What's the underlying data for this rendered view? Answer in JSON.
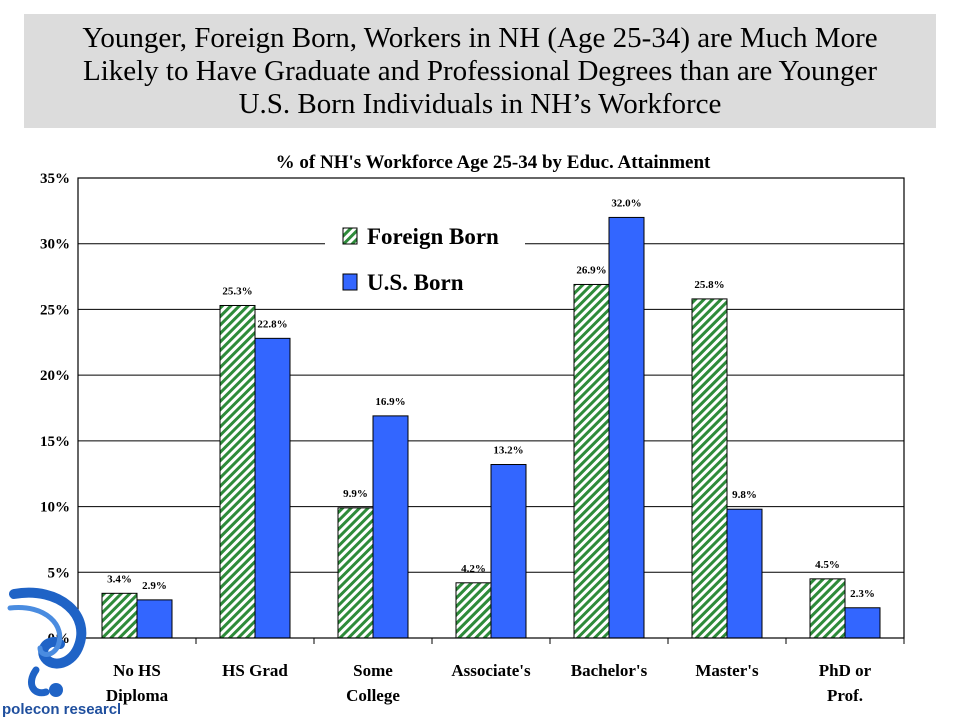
{
  "slide": {
    "title_lines": [
      "Younger, Foreign Born, Workers in NH (Age 25-34) are Much More",
      "Likely to Have Graduate and Professional Degrees than are Younger",
      "U.S. Born Individuals in NH’s Workforce"
    ],
    "logo_text": "polecon research",
    "logo_icon": "polecon-swirl-icon"
  },
  "chart_data": {
    "type": "bar",
    "title": "% of NH's Workforce Age 25-34 by Educ. Attainment",
    "categories": [
      [
        "No HS",
        "Diploma"
      ],
      [
        "HS Grad"
      ],
      [
        "Some",
        "College"
      ],
      [
        "Associate's"
      ],
      [
        "Bachelor's"
      ],
      [
        "Master's"
      ],
      [
        "PhD or",
        "Prof."
      ]
    ],
    "series": [
      {
        "name": "Foreign Born",
        "values": [
          3.4,
          25.3,
          9.9,
          4.2,
          26.9,
          25.8,
          4.5
        ],
        "labels": [
          "3.4%",
          "25.3%",
          "9.9%",
          "4.2%",
          "26.9%",
          "25.8%",
          "4.5%"
        ],
        "pattern": "diagonal-hatch",
        "color": "#2e8b3a"
      },
      {
        "name": "U.S. Born",
        "values": [
          2.9,
          22.8,
          16.9,
          13.2,
          32.0,
          9.8,
          2.3
        ],
        "labels": [
          "2.9%",
          "22.8%",
          "16.9%",
          "13.2%",
          "32.0%",
          "9.8%",
          "2.3%"
        ],
        "pattern": "solid",
        "color": "#3366ff"
      }
    ],
    "ylim": [
      0,
      35
    ],
    "yticks": [
      "0%",
      "5%",
      "10%",
      "15%",
      "20%",
      "25%",
      "30%",
      "35%"
    ],
    "grid": true,
    "legend_position": "top-left-inside"
  }
}
